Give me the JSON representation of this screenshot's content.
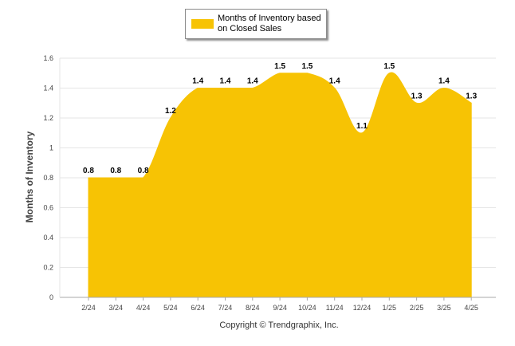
{
  "legend": {
    "label": "Months of Inventory based on Closed Sales"
  },
  "copyright": "Copyright © Trendgraphix, Inc.",
  "colors": {
    "area": "#f7c304",
    "grid": "#e6e6e6",
    "axis": "#aaaaaa"
  },
  "chart_data": {
    "type": "area",
    "categories": [
      "2/24",
      "3/24",
      "4/24",
      "5/24",
      "6/24",
      "7/24",
      "8/24",
      "9/24",
      "10/24",
      "11/24",
      "12/24",
      "1/25",
      "2/25",
      "3/25",
      "4/25"
    ],
    "series": [
      {
        "name": "Months of Inventory based on Closed Sales",
        "values": [
          0.8,
          0.8,
          0.8,
          1.2,
          1.4,
          1.4,
          1.4,
          1.5,
          1.5,
          1.4,
          1.1,
          1.5,
          1.3,
          1.4,
          1.3
        ]
      }
    ],
    "xlabel": "",
    "ylabel": "Months of Inventory",
    "ylim": [
      0,
      1.6
    ],
    "yticks": [
      0,
      0.2,
      0.4,
      0.6,
      0.8,
      1,
      1.2,
      1.4,
      1.6
    ],
    "ytick_labels": [
      "0",
      "0.2",
      "0.4",
      "0.6",
      "0.8",
      "1",
      "1.2",
      "1.4",
      "1.6"
    ],
    "grid": true,
    "legend_position": "top-center",
    "smooth": true
  }
}
